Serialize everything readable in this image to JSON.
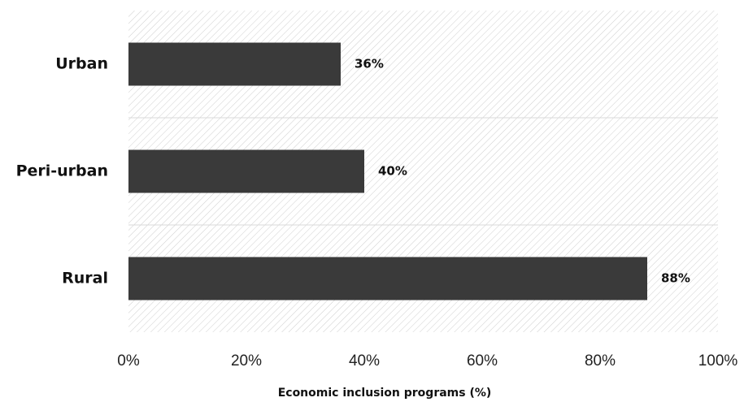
{
  "chart_data": {
    "type": "bar",
    "orientation": "horizontal",
    "categories": [
      "Urban",
      "Peri-urban",
      "Rural"
    ],
    "values": [
      36,
      40,
      88
    ],
    "value_labels": [
      "36%",
      "40%",
      "88%"
    ],
    "xlabel": "Economic inclusion programs (%)",
    "ylabel": "",
    "xlim": [
      0,
      100
    ],
    "x_ticks": [
      0,
      20,
      40,
      60,
      80,
      100
    ],
    "x_tick_labels": [
      "0%",
      "20%",
      "40%",
      "60%",
      "80%",
      "100%"
    ],
    "grid": false,
    "legend": "none",
    "bar_color": "#3a3a3a",
    "background_pattern": "diagonal-hatch",
    "band_separator_color": "#d9d9d9"
  }
}
